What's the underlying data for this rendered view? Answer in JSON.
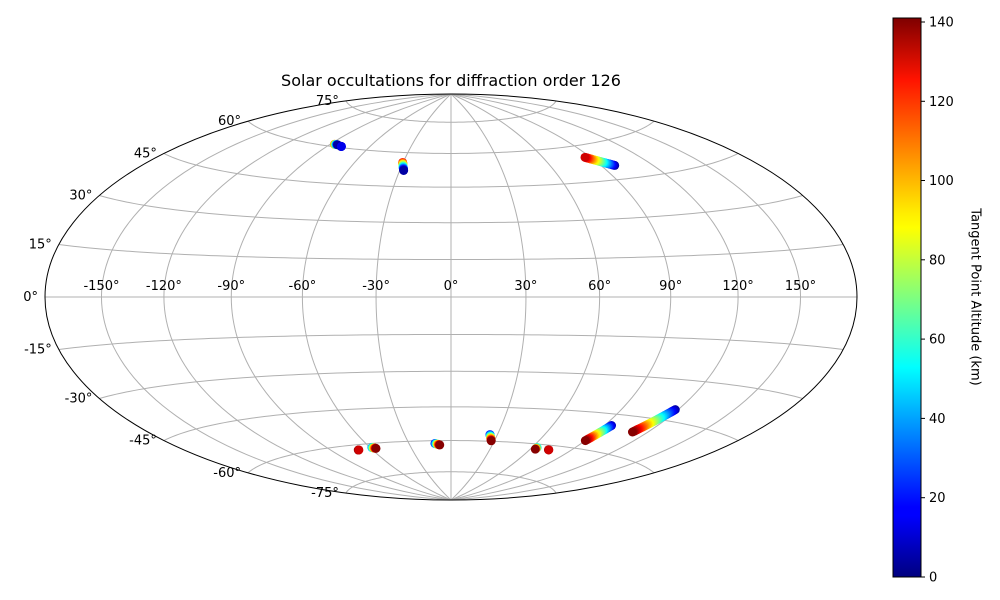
{
  "chart_data": {
    "type": "scatter",
    "projection": "hammer",
    "title": "Solar occultations for diffraction order 126",
    "grid": true,
    "xticks": [
      -150,
      -120,
      -90,
      -60,
      -30,
      0,
      30,
      60,
      90,
      120,
      150
    ],
    "xtick_labels": [
      "-150°",
      "-120°",
      "-90°",
      "-60°",
      "-30°",
      "0°",
      "30°",
      "60°",
      "90°",
      "120°",
      "150°"
    ],
    "yticks": [
      -75,
      -60,
      -45,
      -30,
      -15,
      0,
      15,
      30,
      45,
      60,
      75
    ],
    "ytick_labels": [
      "-75°",
      "-60°",
      "-45°",
      "-30°",
      "-15°",
      "0°",
      "15°",
      "30°",
      "45°",
      "60°",
      "75°"
    ],
    "colorbar": {
      "label": "Tangent Point Altitude (km)",
      "colormap": "jet",
      "range": [
        0,
        141
      ],
      "ticks": [
        0,
        20,
        40,
        60,
        80,
        100,
        120,
        140
      ],
      "tick_labels": [
        "0",
        "20",
        "40",
        "60",
        "80",
        "100",
        "120",
        "140"
      ]
    },
    "tracks": [
      {
        "lon_start": -87.0,
        "lat_start": 61.0,
        "alt_start": 100,
        "lon_end": -84.5,
        "lat_end": 61.0,
        "alt_end": 5,
        "n": 5
      },
      {
        "lon_start": -80.5,
        "lat_start": 60.5,
        "alt_start": 0,
        "lon_end": -80.0,
        "lat_end": 60.5,
        "alt_end": 15,
        "n": 4
      },
      {
        "lon_start": -30.3,
        "lat_start": 55.5,
        "alt_start": 120,
        "lon_end": -27.7,
        "lat_end": 52.0,
        "alt_end": 5,
        "n": 14
      },
      {
        "lon_start": 98.0,
        "lat_start": 50.5,
        "alt_start": 5,
        "lon_end": 86.5,
        "lat_end": 55.0,
        "alt_end": 130,
        "n": 30
      },
      {
        "lon_start": -70.5,
        "lat_start": -62.3,
        "alt_start": 140,
        "lon_end": -70.0,
        "lat_end": -62.3,
        "alt_end": 130,
        "n": 3
      },
      {
        "lon_start": -58.7,
        "lat_start": -61.8,
        "alt_start": 40,
        "lon_end": -56.3,
        "lat_end": -62.3,
        "alt_end": 140,
        "n": 9
      },
      {
        "lon_start": -11.5,
        "lat_start": -61.3,
        "alt_start": 20,
        "lon_end": -8.2,
        "lat_end": -62.0,
        "alt_end": 140,
        "n": 11
      },
      {
        "lon_start": 25.2,
        "lat_start": -57.0,
        "alt_start": 20,
        "lon_end": 27.8,
        "lat_end": -59.8,
        "alt_end": 140,
        "n": 12
      },
      {
        "lon_start": 63.7,
        "lat_start": -61.5,
        "alt_start": 60,
        "lon_end": 63.7,
        "lat_end": -62.3,
        "alt_end": 140,
        "n": 3
      },
      {
        "lon_start": 73.7,
        "lat_start": -62.0,
        "alt_start": 140,
        "lon_end": 74.0,
        "lat_end": -62.0,
        "alt_end": 130,
        "n": 3
      },
      {
        "lon_start": 94.0,
        "lat_start": -49.5,
        "alt_start": 10,
        "lon_end": 90.0,
        "lat_end": -56.5,
        "alt_end": 140,
        "n": 22
      },
      {
        "lon_start": 118.5,
        "lat_start": -40.8,
        "alt_start": 5,
        "lon_end": 111.0,
        "lat_end": -50.8,
        "alt_end": 140,
        "n": 40
      }
    ]
  }
}
